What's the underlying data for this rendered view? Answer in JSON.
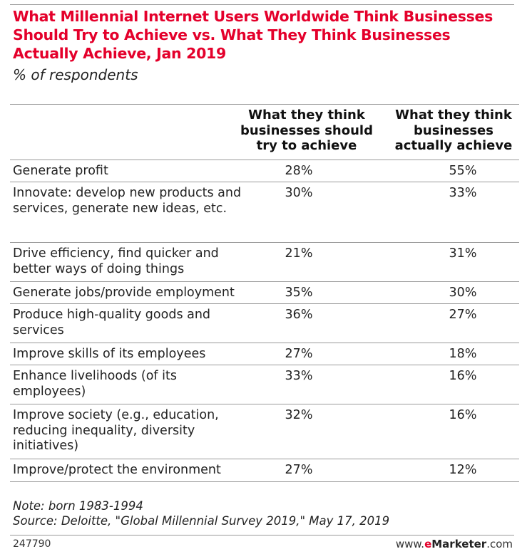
{
  "chart_data": {
    "type": "table",
    "title": "What Millennial Internet Users Worldwide Think Businesses Should Try to Achieve vs. What They Think Businesses Actually Achieve, Jan 2019",
    "subtitle": "% of respondents",
    "columns": [
      "What they think businesses should try to achieve",
      "What they think businesses actually achieve"
    ],
    "rows": [
      {
        "label": "Generate profit",
        "values": [
          "28%",
          "55%"
        ]
      },
      {
        "label": "Innovate: develop new products and services, generate new ideas, etc.",
        "values": [
          "30%",
          "33%"
        ]
      },
      {
        "label": "Drive efficiency, find quicker and better ways of doing things",
        "values": [
          "21%",
          "31%"
        ]
      },
      {
        "label": "Generate jobs/provide employment",
        "values": [
          "35%",
          "30%"
        ]
      },
      {
        "label": "Produce high-quality goods and services",
        "values": [
          "36%",
          "27%"
        ]
      },
      {
        "label": "Improve skills of its employees",
        "values": [
          "27%",
          "18%"
        ]
      },
      {
        "label": "Enhance livelihoods (of its employees)",
        "values": [
          "33%",
          "16%"
        ]
      },
      {
        "label": "Improve society (e.g., education, reducing inequality, diversity initiatives)",
        "values": [
          "32%",
          "16%"
        ]
      },
      {
        "label": "Improve/protect the environment",
        "values": [
          "27%",
          "12%"
        ]
      }
    ],
    "note": "Note: born 1983-1994",
    "source": "Source: Deloitte, \"Global Millennial Survey 2019,\" May 17, 2019",
    "chart_id": "247790",
    "brand": {
      "prefix": "www.",
      "emphasis": "e",
      "name": "Marketer",
      "suffix": ".com"
    }
  },
  "colors": {
    "accent": "#e4002b",
    "rule": "#9a9a9a"
  }
}
